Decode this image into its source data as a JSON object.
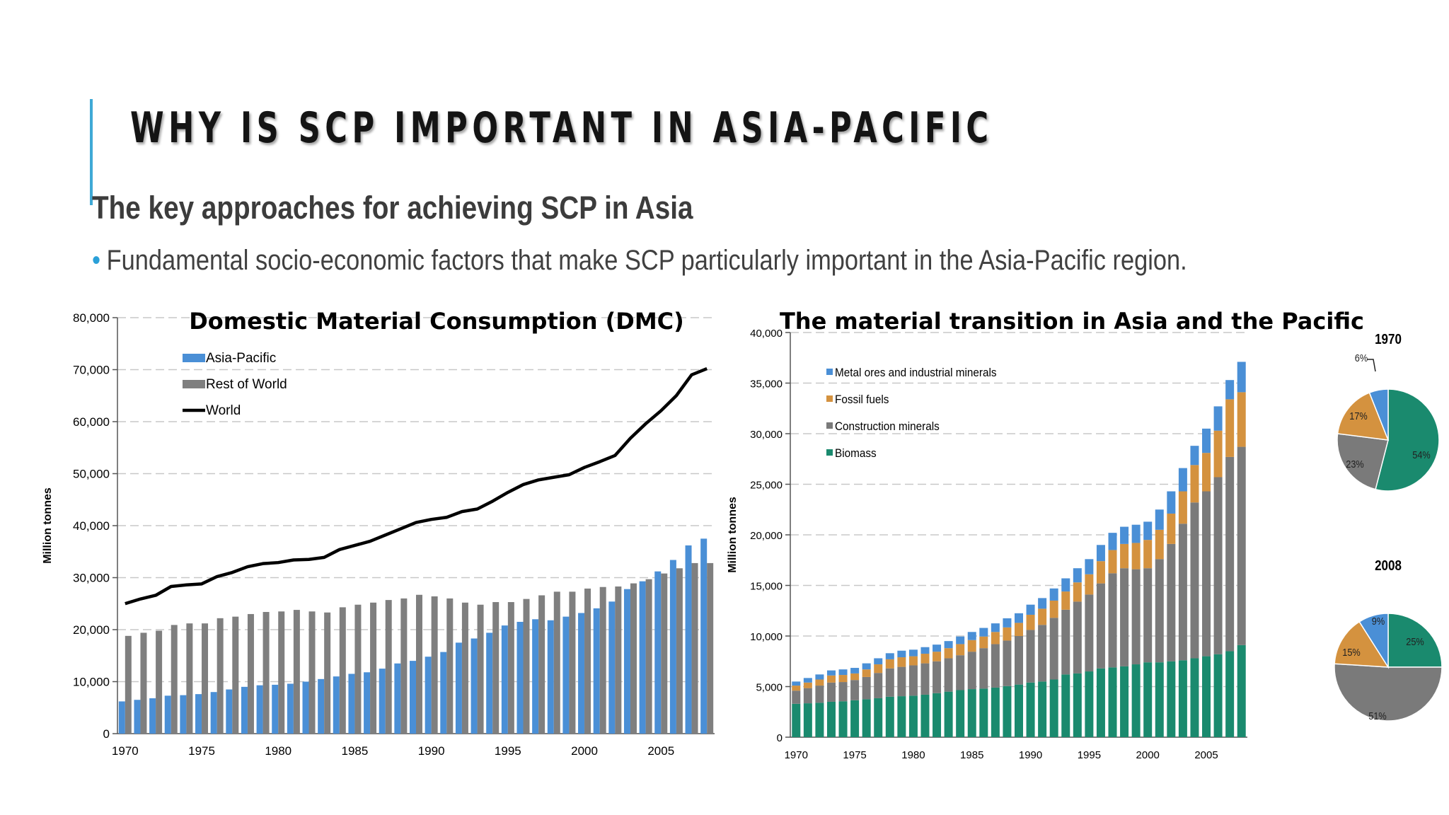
{
  "slide": {
    "title": "WHY IS SCP IMPORTANT IN ASIA-PACIFIC",
    "subtitle": "The key approaches for achieving SCP in Asia",
    "bullet": "Fundamental socio-economic factors that make SCP particularly important in the Asia-Pacific region."
  },
  "colors": {
    "accent": "#3fa9d6",
    "bullet": "#2aa0d8"
  },
  "chart_data": [
    {
      "type": "bar",
      "title": "Domestic Material Consumption (DMC)",
      "ylabel": "Million tonnes",
      "xlabel": "",
      "ylim": [
        0,
        80000
      ],
      "yticks": [
        0,
        10000,
        20000,
        30000,
        40000,
        50000,
        60000,
        70000,
        80000
      ],
      "ytick_labels": [
        "0",
        "10,000",
        "20,000",
        "30,000",
        "40,000",
        "50,000",
        "60,000",
        "70,000",
        "80,000"
      ],
      "xtick_labels": [
        "1970",
        "1975",
        "1980",
        "1985",
        "1990",
        "1995",
        "2000",
        "2005"
      ],
      "categories": [
        1970,
        1971,
        1972,
        1973,
        1974,
        1975,
        1976,
        1977,
        1978,
        1979,
        1980,
        1981,
        1982,
        1983,
        1984,
        1985,
        1986,
        1987,
        1988,
        1989,
        1990,
        1991,
        1992,
        1993,
        1994,
        1995,
        1996,
        1997,
        1998,
        1999,
        2000,
        2001,
        2002,
        2003,
        2004,
        2005,
        2006,
        2007,
        2008
      ],
      "legend_position": "top-left",
      "grid": "horizontal dashed",
      "series": [
        {
          "name": "Asia-Pacific",
          "kind": "bar",
          "color": "#4a8fd6",
          "values": [
            6200,
            6500,
            6800,
            7300,
            7400,
            7600,
            8000,
            8500,
            9000,
            9300,
            9400,
            9600,
            10000,
            10500,
            11000,
            11500,
            11800,
            12500,
            13500,
            14000,
            14800,
            15700,
            17500,
            18300,
            19400,
            20800,
            21500,
            22000,
            21800,
            22500,
            23200,
            24100,
            25400,
            27800,
            29300,
            31200,
            33400,
            36200,
            37500
          ]
        },
        {
          "name": "Rest of World",
          "kind": "bar",
          "color": "#7f7f7f",
          "values": [
            18800,
            19400,
            19800,
            20900,
            21200,
            21200,
            22200,
            22500,
            23000,
            23400,
            23500,
            23800,
            23500,
            23300,
            24300,
            24800,
            25200,
            25700,
            26000,
            26700,
            26400,
            26000,
            25200,
            24800,
            25300,
            25300,
            25900,
            26600,
            27300,
            27300,
            27900,
            28200,
            28300,
            28900,
            29700,
            30800,
            31800,
            32800,
            32800
          ]
        },
        {
          "name": "World",
          "kind": "line",
          "color": "#000000",
          "values": [
            25000,
            25900,
            26600,
            28300,
            28600,
            28800,
            30200,
            31000,
            32100,
            32700,
            32900,
            33400,
            33500,
            33900,
            35400,
            36200,
            37000,
            38200,
            39400,
            40600,
            41200,
            41600,
            42700,
            43200,
            44700,
            46400,
            47900,
            48800,
            49300,
            49800,
            51200,
            52300,
            53500,
            56800,
            59600,
            62100,
            65000,
            69000,
            70200
          ]
        }
      ]
    },
    {
      "type": "bar",
      "stacked": true,
      "title": "The material transition in Asia and the Pacific",
      "ylabel": "Million tonnes",
      "xlabel": "",
      "ylim": [
        0,
        40000
      ],
      "yticks": [
        0,
        5000,
        10000,
        15000,
        20000,
        25000,
        30000,
        35000,
        40000
      ],
      "ytick_labels": [
        "0",
        "5,000",
        "10,000",
        "15,000",
        "20,000",
        "25,000",
        "30,000",
        "35,000",
        "40,000"
      ],
      "xtick_labels": [
        "1970",
        "1975",
        "1980",
        "1985",
        "1990",
        "1995",
        "2000",
        "2005"
      ],
      "categories": [
        1970,
        1971,
        1972,
        1973,
        1974,
        1975,
        1976,
        1977,
        1978,
        1979,
        1980,
        1981,
        1982,
        1983,
        1984,
        1985,
        1986,
        1987,
        1988,
        1989,
        1990,
        1991,
        1992,
        1993,
        1994,
        1995,
        1996,
        1997,
        1998,
        1999,
        2000,
        2001,
        2002,
        2003,
        2004,
        2005,
        2006,
        2007,
        2008
      ],
      "legend_position": "top-left",
      "grid": "horizontal dashed",
      "series": [
        {
          "name": "Biomass",
          "color": "#1a8a6e",
          "values": [
            3300,
            3350,
            3400,
            3500,
            3550,
            3650,
            3750,
            3850,
            4000,
            4050,
            4100,
            4200,
            4350,
            4500,
            4650,
            4750,
            4800,
            4900,
            5050,
            5200,
            5400,
            5500,
            5700,
            6200,
            6300,
            6500,
            6800,
            6900,
            7000,
            7200,
            7400,
            7400,
            7500,
            7600,
            7800,
            8000,
            8200,
            8500,
            9100
          ]
        },
        {
          "name": "Construction minerals",
          "color": "#7a7a7a",
          "values": [
            1300,
            1500,
            1700,
            1900,
            1900,
            2000,
            2200,
            2500,
            2800,
            2900,
            3000,
            3100,
            3150,
            3300,
            3450,
            3700,
            4000,
            4300,
            4500,
            4800,
            5200,
            5600,
            6100,
            6400,
            7100,
            7600,
            8400,
            9300,
            9700,
            9400,
            9300,
            10200,
            11600,
            13500,
            15400,
            16300,
            17500,
            19200,
            19600
          ]
        },
        {
          "name": "Fossil fuels",
          "color": "#d4923f",
          "values": [
            500,
            550,
            600,
            700,
            700,
            650,
            750,
            850,
            900,
            950,
            900,
            950,
            950,
            1000,
            1100,
            1150,
            1150,
            1200,
            1300,
            1300,
            1500,
            1600,
            1700,
            1800,
            1900,
            2000,
            2200,
            2300,
            2400,
            2600,
            2800,
            2900,
            3000,
            3200,
            3700,
            3800,
            4600,
            5700,
            5400
          ]
        },
        {
          "name": "Metal ores and industrial minerals",
          "color": "#4a8fd6",
          "values": [
            400,
            450,
            500,
            500,
            550,
            550,
            600,
            600,
            600,
            650,
            650,
            650,
            700,
            700,
            750,
            800,
            850,
            850,
            900,
            950,
            1000,
            1050,
            1200,
            1300,
            1400,
            1500,
            1600,
            1700,
            1700,
            1800,
            1800,
            2000,
            2200,
            2300,
            1900,
            2400,
            2400,
            1900,
            3000
          ]
        }
      ]
    },
    {
      "type": "pie",
      "title": "1970",
      "slices": [
        {
          "name": "Biomass",
          "value": 54,
          "label": "54%",
          "color": "#1a8a6e"
        },
        {
          "name": "Construction minerals",
          "value": 23,
          "label": "23%",
          "color": "#7a7a7a"
        },
        {
          "name": "Fossil fuels",
          "value": 17,
          "label": "17%",
          "color": "#d4923f"
        },
        {
          "name": "Metal ores and industrial minerals",
          "value": 6,
          "label": "6%",
          "color": "#4a8fd6"
        }
      ]
    },
    {
      "type": "pie",
      "title": "2008",
      "slices": [
        {
          "name": "Biomass",
          "value": 25,
          "label": "25%",
          "color": "#1a8a6e"
        },
        {
          "name": "Construction minerals",
          "value": 51,
          "label": "51%",
          "color": "#7a7a7a"
        },
        {
          "name": "Fossil fuels",
          "value": 15,
          "label": "15%",
          "color": "#d4923f"
        },
        {
          "name": "Metal ores and industrial minerals",
          "value": 9,
          "label": "9%",
          "color": "#4a8fd6"
        }
      ]
    }
  ]
}
